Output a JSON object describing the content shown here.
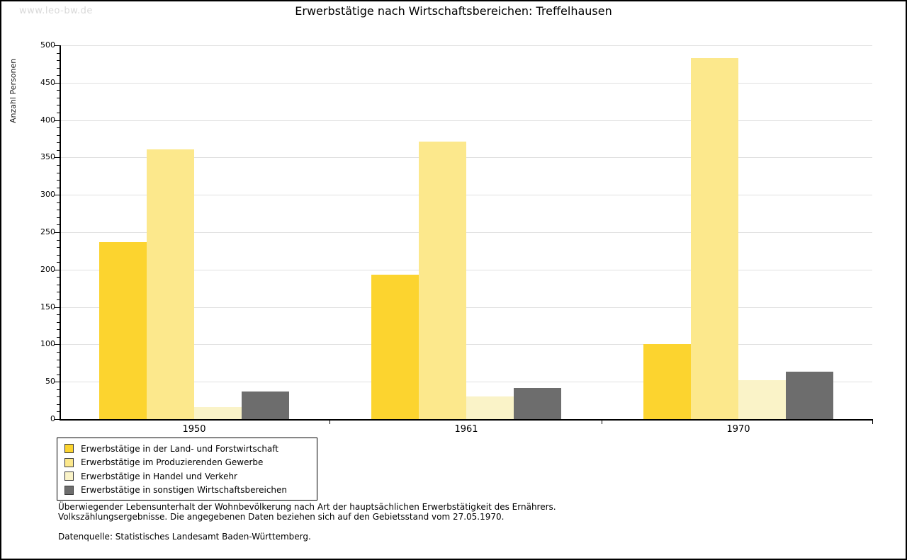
{
  "page": {
    "watermark": "www.leo-bw.de"
  },
  "chart_data": {
    "type": "bar",
    "title": "Erwerbstätige nach Wirtschaftsbereichen: Treffelhausen",
    "xlabel": "",
    "ylabel": "Anzahl Personen",
    "ylim": [
      0,
      500
    ],
    "ytick_step": 50,
    "ytick_minor_step": 10,
    "grid": true,
    "legend_position": "bottom-left",
    "categories": [
      "1950",
      "1961",
      "1970"
    ],
    "series": [
      {
        "name": "Erwerbstätige in der Land- und Forstwirtschaft",
        "color": "#FCD42F",
        "values": [
          237,
          193,
          100
        ]
      },
      {
        "name": "Erwerbstätige im Produzierenden Gewerbe",
        "color": "#FCE88C",
        "values": [
          361,
          371,
          483
        ]
      },
      {
        "name": "Erwerbstätige in Handel und Verkehr",
        "color": "#FAF3C8",
        "values": [
          16,
          30,
          52
        ]
      },
      {
        "name": "Erwerbstätige in sonstigen Wirtschaftsbereichen",
        "color": "#6D6D6D",
        "values": [
          37,
          42,
          63
        ]
      }
    ]
  },
  "footnotes": {
    "line1": "Überwiegender Lebensunterhalt der Wohnbevölkerung nach Art der hauptsächlichen Erwerbstätigkeit des Ernährers.",
    "line2": "Volkszählungsergebnisse. Die angegebenen Daten beziehen sich auf den Gebietsstand vom 27.05.1970.",
    "source": "Datenquelle: Statistisches Landesamt Baden-Württemberg."
  },
  "colors": {
    "grid": "#E0E0E0",
    "axis": "#000000",
    "watermark": "#D9D9D9"
  }
}
